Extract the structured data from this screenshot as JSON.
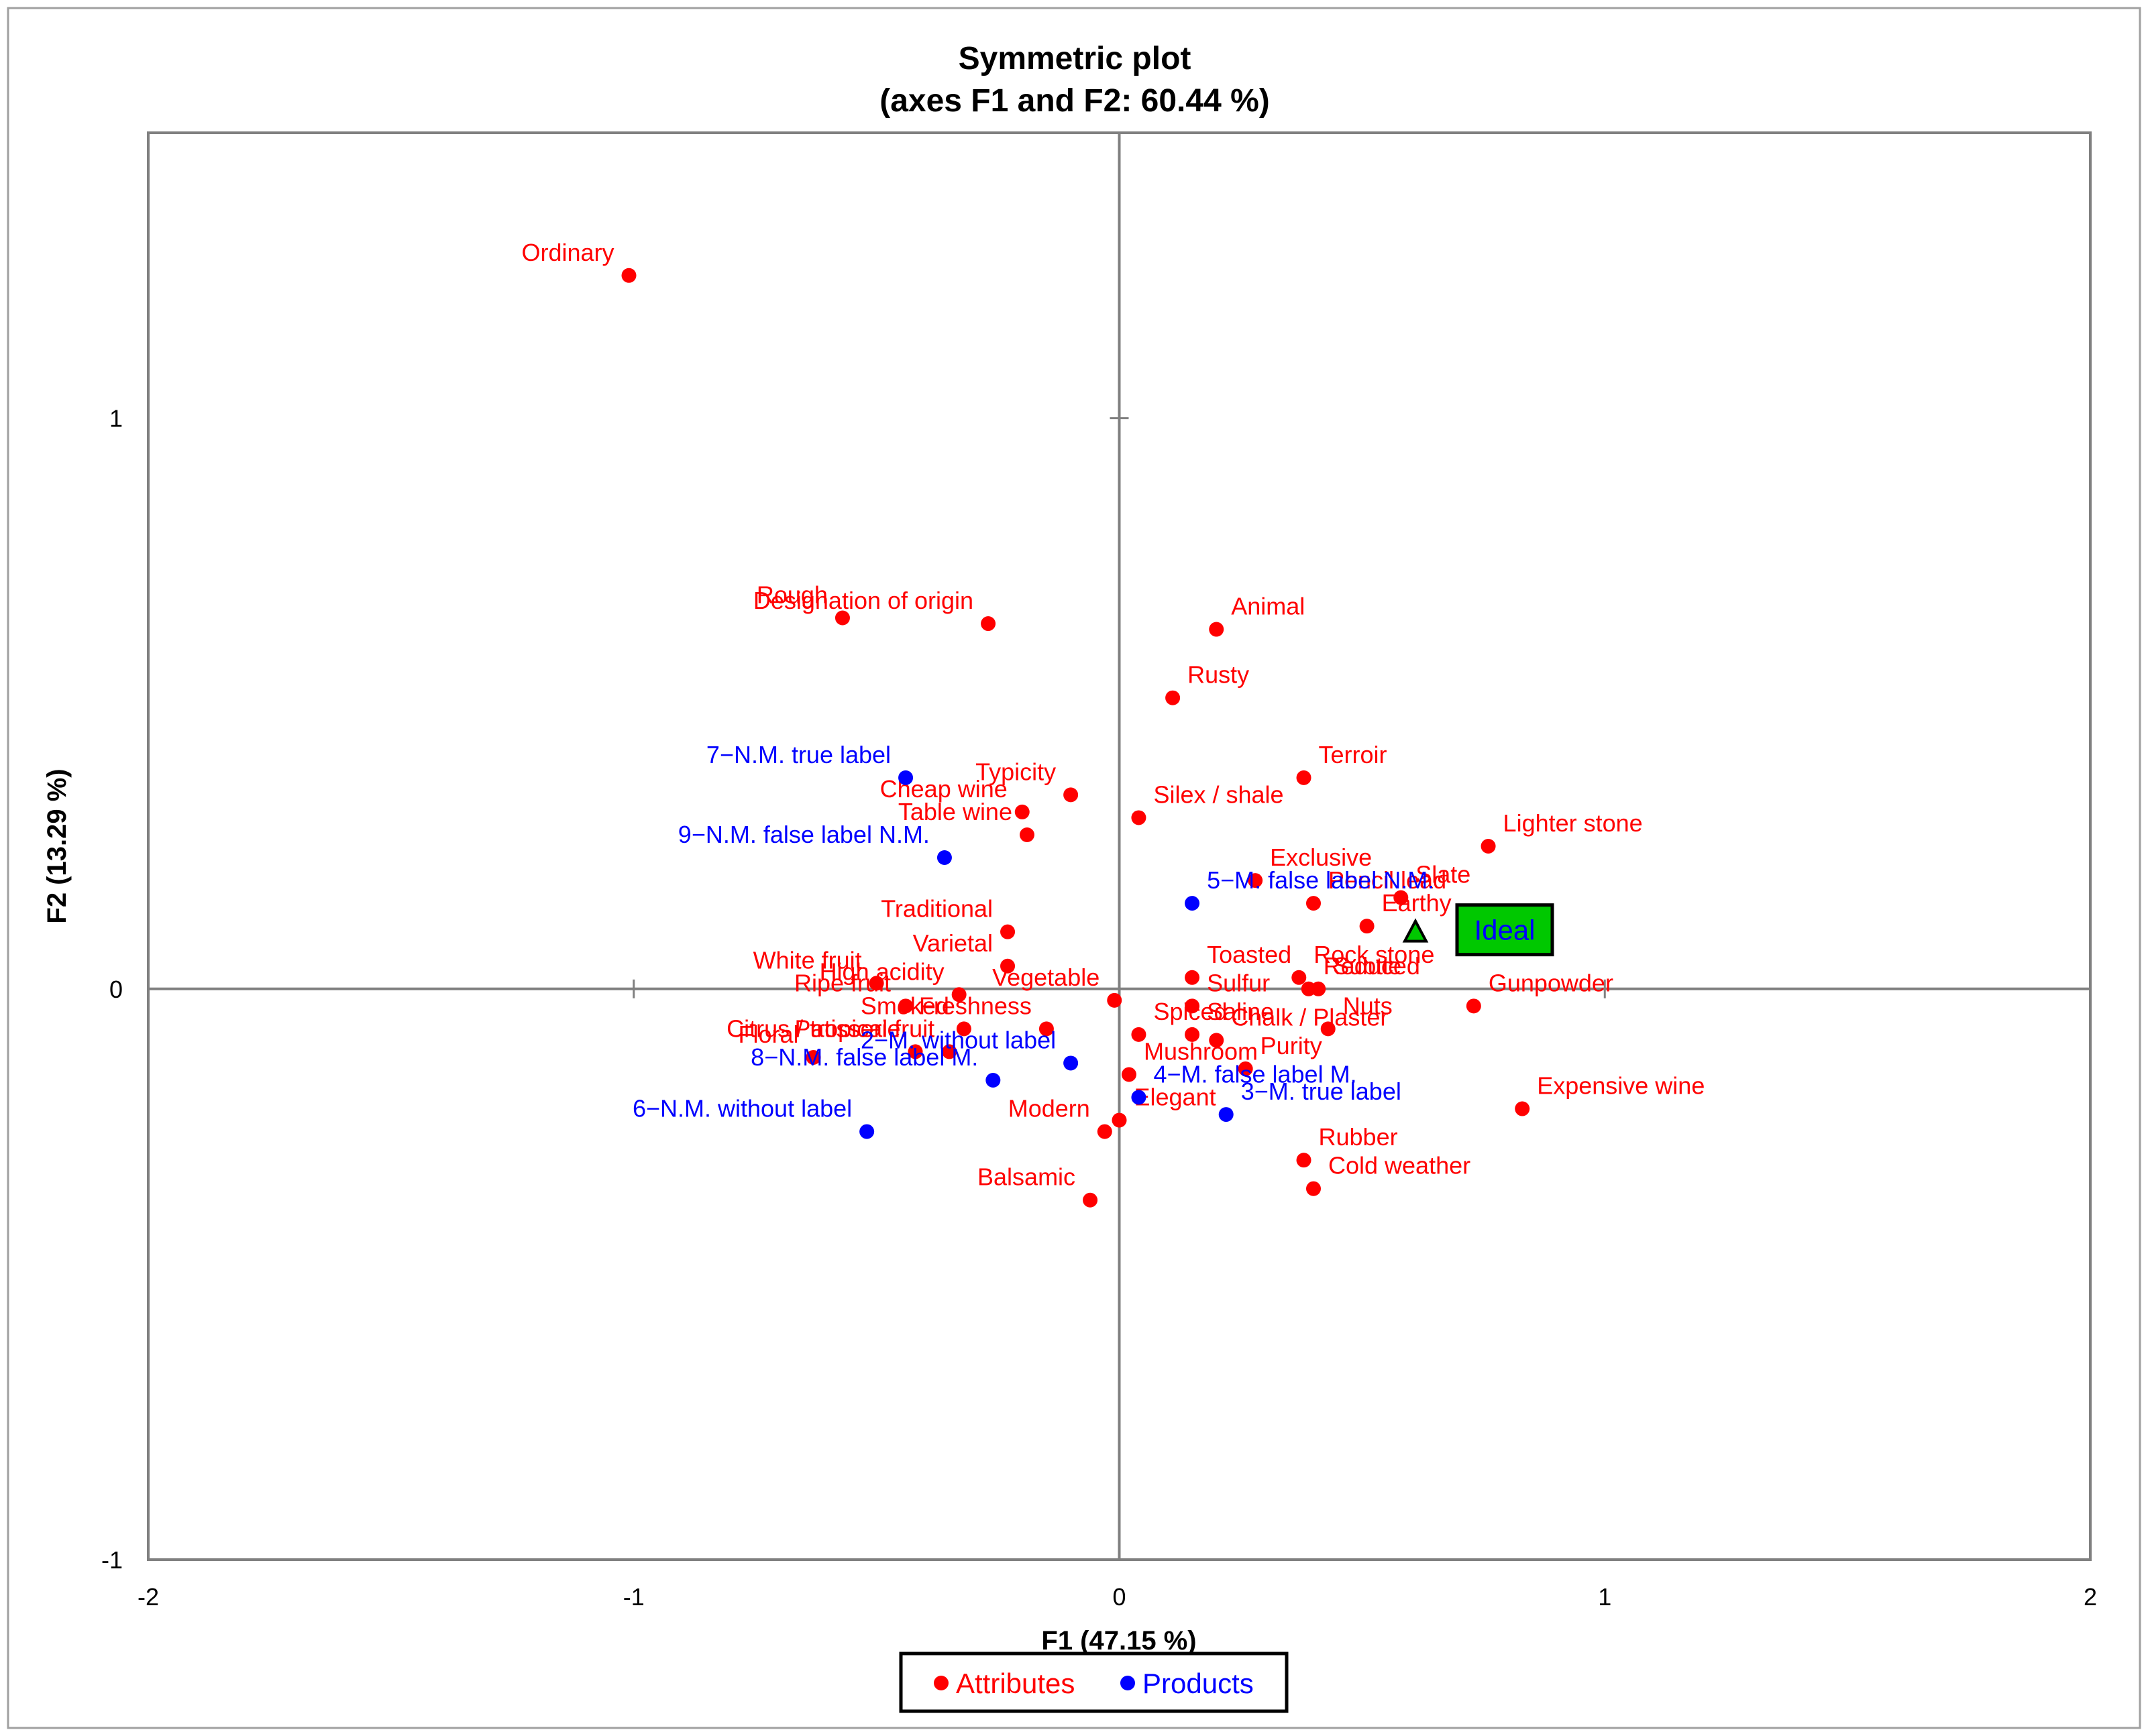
{
  "chart_data": {
    "type": "scatter",
    "title": "Symmetric plot",
    "subtitle": "(axes F1 and F2: 60.44 %)",
    "xlabel": "F1 (47.15 %)",
    "ylabel": "F2 (13.29 %)",
    "xlim": [
      -2,
      2
    ],
    "ylim": [
      -1,
      1.5
    ],
    "x_ticks": [
      -2,
      -1,
      0,
      1,
      2
    ],
    "y_ticks": [
      -1,
      0,
      1
    ],
    "legend": {
      "position": "bottom-center",
      "entries": [
        "Attributes",
        "Products"
      ]
    },
    "colors": {
      "attributes": "#ff0000",
      "products": "#0000ff",
      "ideal": "#00c800",
      "axis": "#808080"
    },
    "series": [
      {
        "name": "Attributes",
        "points": [
          {
            "label": "Ordinary",
            "x": -1.01,
            "y": 1.25
          },
          {
            "label": "Designation of origin",
            "x": -0.27,
            "y": 0.64
          },
          {
            "label": "Rough",
            "x": -0.57,
            "y": 0.65
          },
          {
            "label": "Animal",
            "x": 0.2,
            "y": 0.63
          },
          {
            "label": "Rusty",
            "x": 0.11,
            "y": 0.51
          },
          {
            "label": "Cheap wine",
            "x": -0.2,
            "y": 0.31
          },
          {
            "label": "Typicity",
            "x": -0.1,
            "y": 0.34
          },
          {
            "label": "Table wine",
            "x": -0.19,
            "y": 0.27
          },
          {
            "label": "Terroir",
            "x": 0.38,
            "y": 0.37
          },
          {
            "label": "Silex / shale",
            "x": 0.04,
            "y": 0.3
          },
          {
            "label": "Exclusive",
            "x": 0.28,
            "y": 0.19
          },
          {
            "label": "Lighter stone",
            "x": 0.76,
            "y": 0.25
          },
          {
            "label": "Slate",
            "x": 0.58,
            "y": 0.16
          },
          {
            "label": "Pencil lead",
            "x": 0.4,
            "y": 0.15
          },
          {
            "label": "Earthy",
            "x": 0.51,
            "y": 0.11
          },
          {
            "label": "Traditional",
            "x": -0.23,
            "y": 0.1
          },
          {
            "label": "Varietal",
            "x": -0.23,
            "y": 0.04
          },
          {
            "label": "Toasted",
            "x": 0.15,
            "y": 0.02
          },
          {
            "label": "Rock stone",
            "x": 0.37,
            "y": 0.02
          },
          {
            "label": "White fruit",
            "x": -0.5,
            "y": 0.01
          },
          {
            "label": "High acidity",
            "x": -0.33,
            "y": -0.01
          },
          {
            "label": "Vegetable",
            "x": -0.01,
            "y": -0.02
          },
          {
            "label": "Sulfur",
            "x": 0.15,
            "y": -0.03
          },
          {
            "label": "Ripe fruit",
            "x": -0.44,
            "y": -0.03
          },
          {
            "label": "Smoked",
            "x": -0.32,
            "y": -0.07
          },
          {
            "label": "Spiced",
            "x": 0.04,
            "y": -0.08
          },
          {
            "label": "Saline",
            "x": 0.15,
            "y": -0.08
          },
          {
            "label": "Nuts",
            "x": 0.43,
            "y": -0.07
          },
          {
            "label": "Gunpowder",
            "x": 0.73,
            "y": -0.03
          },
          {
            "label": "Patisserie",
            "x": -0.42,
            "y": -0.11
          },
          {
            "label": "Floral",
            "x": -0.63,
            "y": -0.12
          },
          {
            "label": "Citrus / tropical fruit",
            "x": -0.35,
            "y": -0.11
          },
          {
            "label": "Freshness",
            "x": -0.15,
            "y": -0.07
          },
          {
            "label": "Mushroom",
            "x": 0.02,
            "y": -0.15
          },
          {
            "label": "Purity",
            "x": 0.26,
            "y": -0.14
          },
          {
            "label": "Chalk / Plaster",
            "x": 0.2,
            "y": -0.09
          },
          {
            "label": "Expensive wine",
            "x": 0.83,
            "y": -0.21
          },
          {
            "label": "Elegant",
            "x": 0.0,
            "y": -0.23
          },
          {
            "label": "Modern",
            "x": -0.03,
            "y": -0.25
          },
          {
            "label": "Reduced",
            "x": 0.39,
            "y": 0.0
          },
          {
            "label": "Rubber",
            "x": 0.38,
            "y": -0.3
          },
          {
            "label": "Cold weather",
            "x": 0.4,
            "y": -0.35
          },
          {
            "label": "Balsamic",
            "x": -0.06,
            "y": -0.37
          },
          {
            "label": "Subtle",
            "x": 0.41,
            "y": 0.0
          }
        ]
      },
      {
        "name": "Products",
        "points": [
          {
            "label": "7−N.M. true label",
            "x": -0.44,
            "y": 0.37
          },
          {
            "label": "9−N.M. false label N.M.",
            "x": -0.36,
            "y": 0.23
          },
          {
            "label": "5−M. false label N.M.",
            "x": 0.15,
            "y": 0.15
          },
          {
            "label": "2−M. without label",
            "x": -0.1,
            "y": -0.13
          },
          {
            "label": "8−N.M. false label M.",
            "x": -0.26,
            "y": -0.16
          },
          {
            "label": "3−M. true label",
            "x": 0.22,
            "y": -0.22
          },
          {
            "label": "6−N.M. without label",
            "x": -0.52,
            "y": -0.25
          },
          {
            "label": "4−M. false label M.",
            "x": 0.04,
            "y": -0.19
          }
        ]
      }
    ],
    "ideal": {
      "label": "Ideal",
      "x": 0.61,
      "y": 0.1
    }
  }
}
